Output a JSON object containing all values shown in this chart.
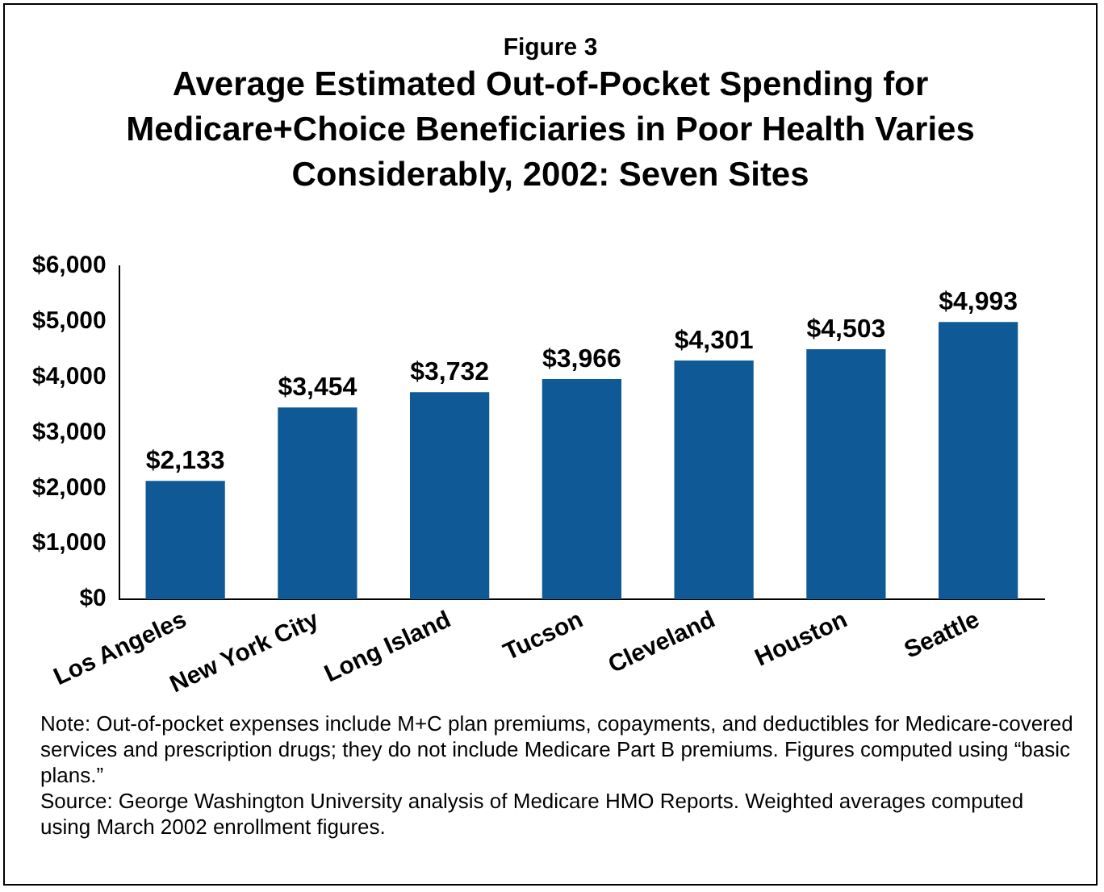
{
  "chart_data": {
    "type": "bar",
    "title": "Figure 3",
    "subtitle": "Average Estimated Out-of-Pocket Spending for Medicare+Choice Beneficiaries in Poor Health Varies Considerably, 2002: Seven Sites",
    "categories": [
      "Los Angeles",
      "New York City",
      "Long Island",
      "Tucson",
      "Cleveland",
      "Houston",
      "Seattle"
    ],
    "values": [
      2133,
      3454,
      3732,
      3966,
      4301,
      4503,
      4993
    ],
    "value_labels": [
      "$2,133",
      "$3,454",
      "$3,732",
      "$3,966",
      "$4,301",
      "$4,503",
      "$4,993"
    ],
    "color": "#0f5a96",
    "ylim": [
      0,
      6000
    ],
    "yticks": [
      {
        "value": 0,
        "label": "$0"
      },
      {
        "value": 1000,
        "label": "$1,000"
      },
      {
        "value": 2000,
        "label": "$2,000"
      },
      {
        "value": 3000,
        "label": "$3,000"
      },
      {
        "value": 4000,
        "label": "$4,000"
      },
      {
        "value": 5000,
        "label": "$5,000"
      },
      {
        "value": 6000,
        "label": "$6,000"
      }
    ],
    "grid": false,
    "legend": false,
    "annotations": [
      "Note: Out-of-pocket expenses include M+C plan premiums, copayments, and deductibles for Medicare-covered services and prescription drugs; they do not include Medicare Part B premiums. Figures computed using “basic plans.”",
      "Source: George Washington University analysis of Medicare HMO Reports. Weighted averages computed using March 2002 enrollment figures."
    ]
  }
}
